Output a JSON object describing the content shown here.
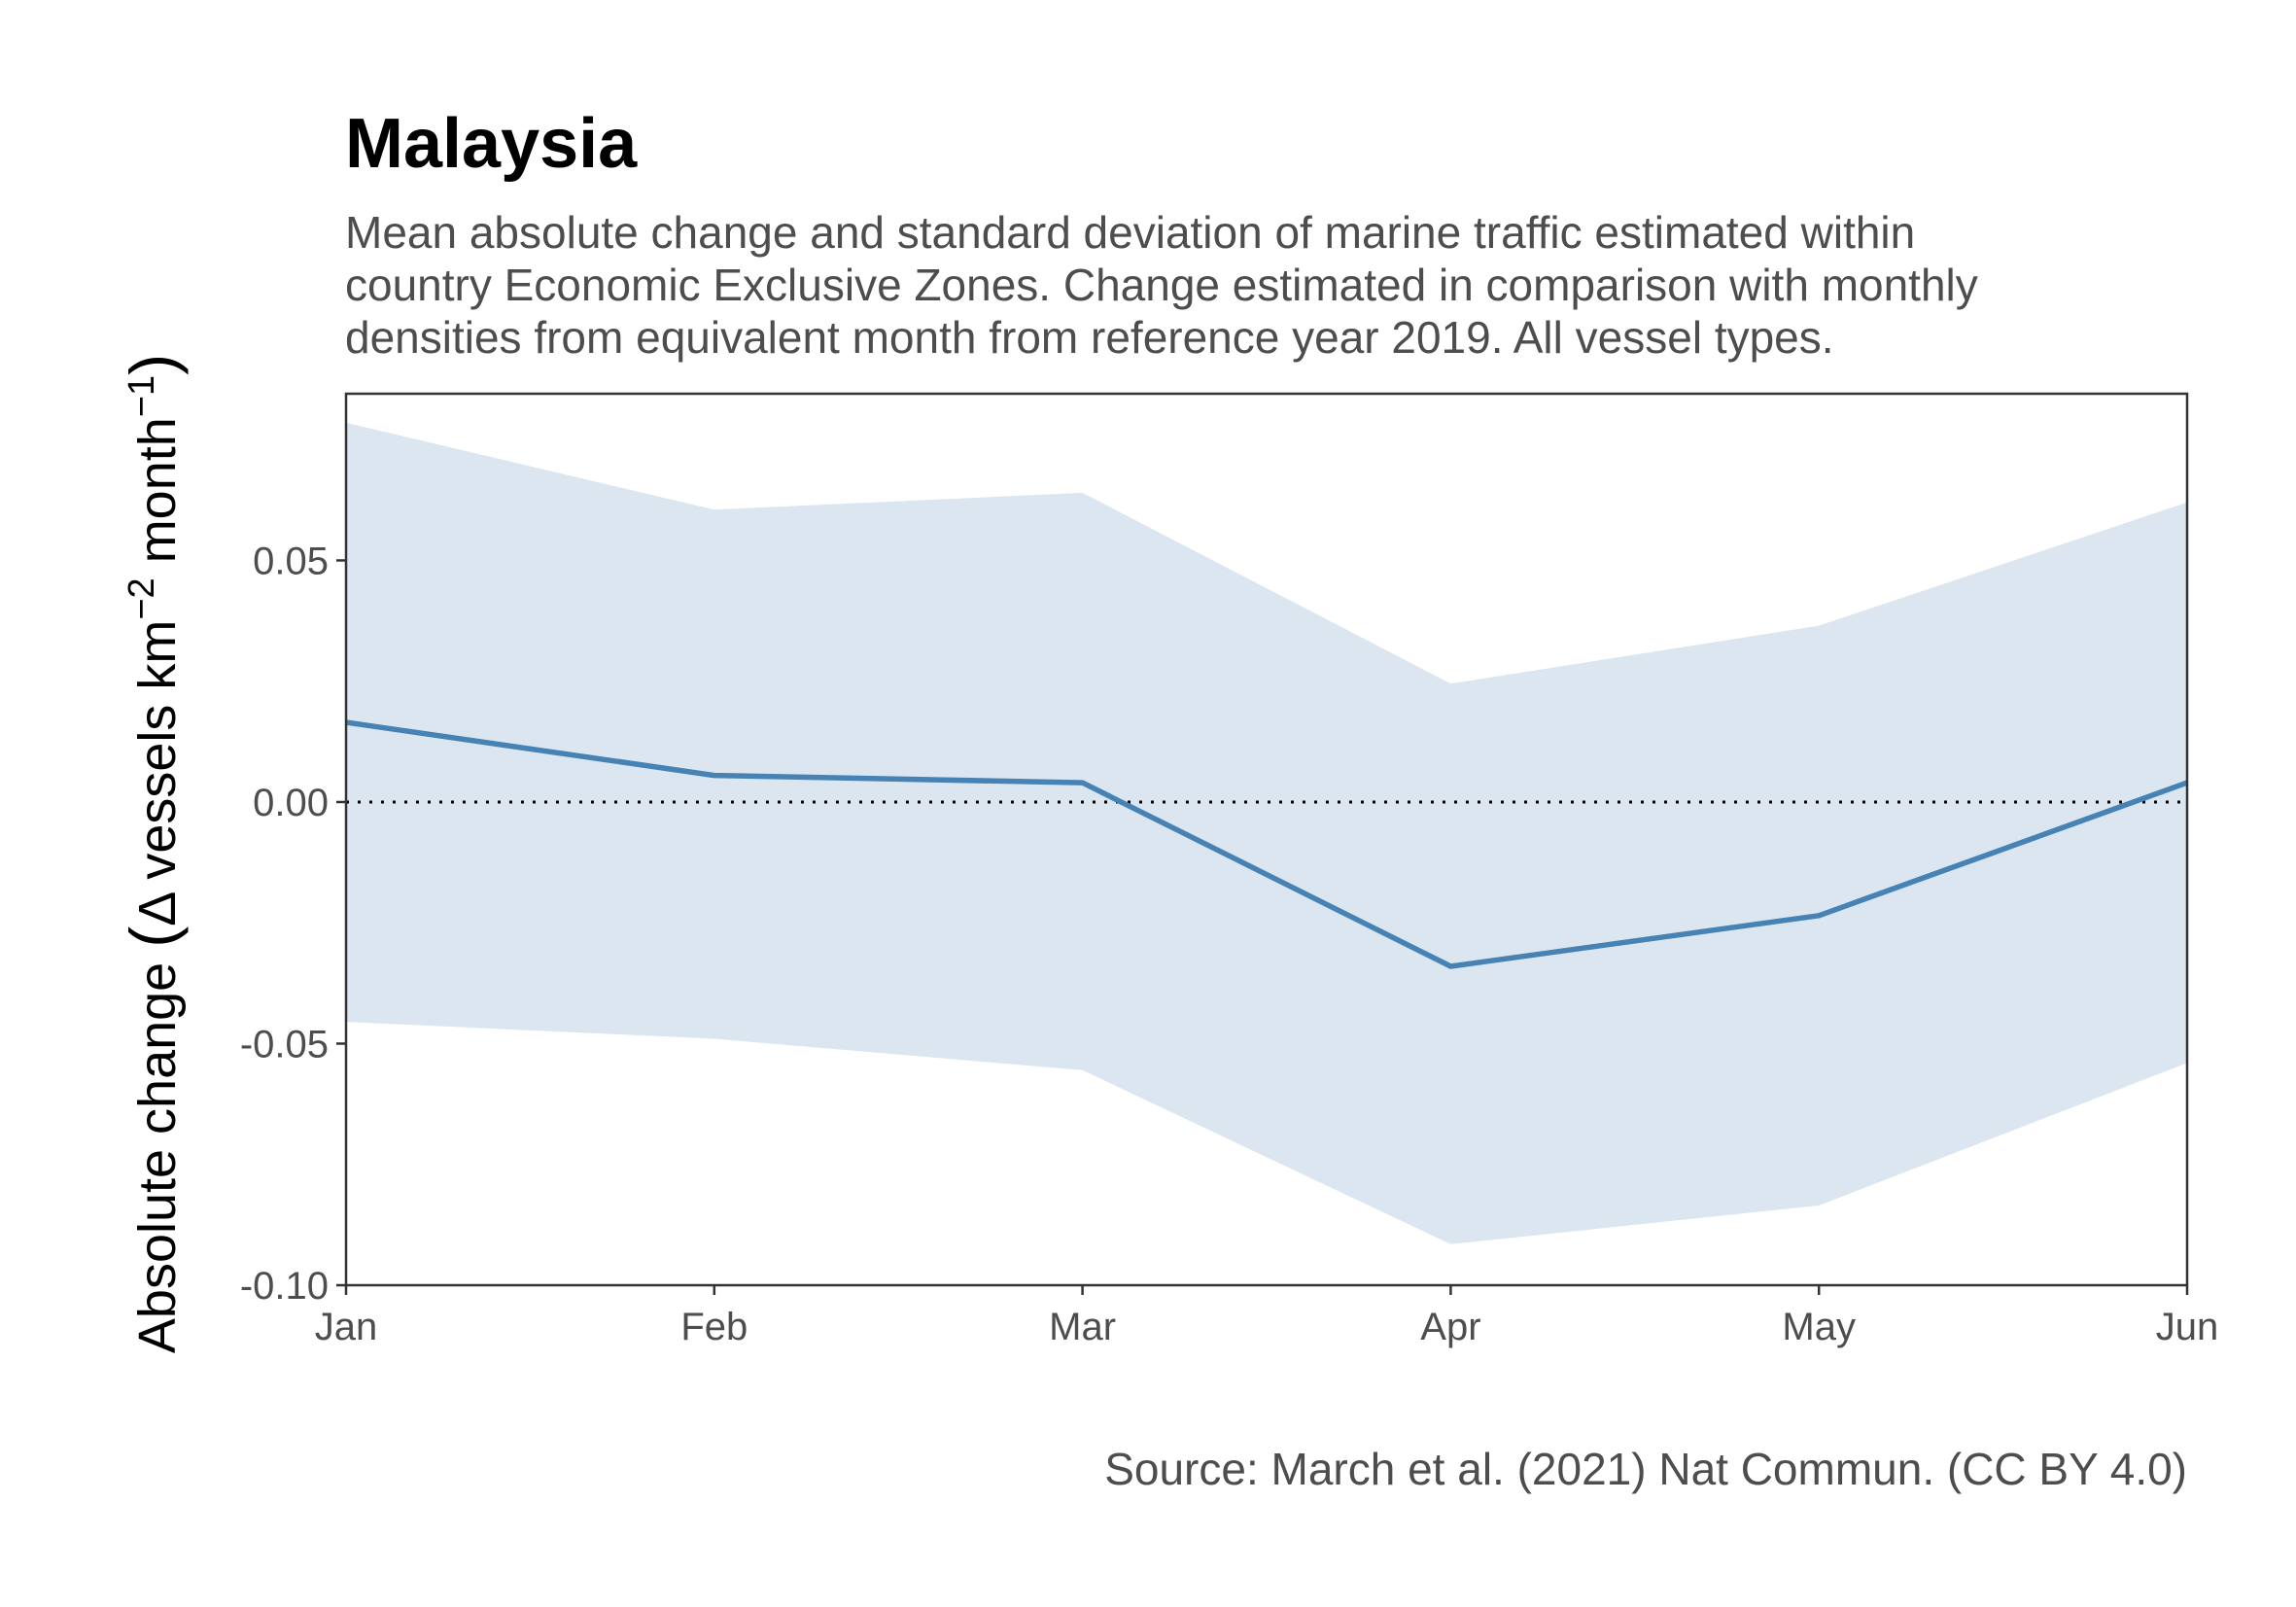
{
  "chart_data": {
    "type": "line",
    "title": "Malaysia",
    "subtitle_lines": [
      "Mean absolute change and standard deviation of marine traffic estimated within",
      "country Economic Exclusive Zones. Change estimated in comparison with monthly",
      "densities from equivalent month from reference year 2019. All vessel types."
    ],
    "ylabel": {
      "prefix": "Absolute change ",
      "open_paren": "(",
      "delta": "Δ",
      "middle": " vessels km",
      "sup1": "−2",
      "mid2": " month",
      "sup2": "−1",
      "close_paren": ")"
    },
    "xlabel": "",
    "categories": [
      "Jan",
      "Feb",
      "Mar",
      "Apr",
      "May",
      "Jun"
    ],
    "series": [
      {
        "values": [
          0.0165,
          0.0055,
          0.004,
          -0.034,
          -0.0235,
          0.004
        ],
        "lower": [
          -0.0455,
          -0.049,
          -0.0555,
          -0.0915,
          -0.0835,
          -0.054
        ],
        "upper": [
          0.0785,
          0.0605,
          0.064,
          0.0245,
          0.0365,
          0.062
        ]
      }
    ],
    "ylim": [
      -0.1,
      0.0845
    ],
    "yticks": [
      -0.1,
      -0.05,
      0.0,
      0.05
    ],
    "ytick_labels": [
      "-0.10",
      "-0.05",
      "0.00",
      "0.05"
    ],
    "reference_line": 0,
    "grid": false,
    "caption": "Source: March et al. (2021) Nat Commun. (CC BY 4.0)",
    "colors": {
      "line": "#4682b4",
      "band": "#dbe6f0",
      "frame": "#333333",
      "reference": "#000000"
    }
  }
}
